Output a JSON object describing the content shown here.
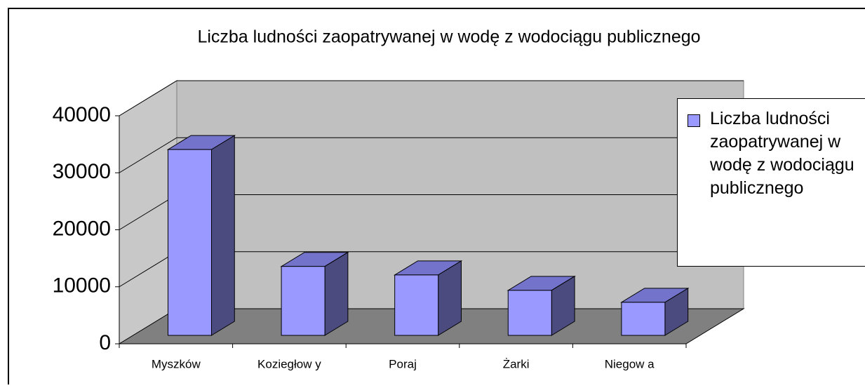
{
  "chart_data": {
    "type": "bar3d",
    "title": "Liczba ludności zaopatrywanej w wodę z wodociągu publicznego",
    "categories": [
      "Myszków",
      "Koziegłow y",
      "Poraj",
      "Żarki",
      "Niegow a"
    ],
    "series": [
      {
        "name": "Liczba ludności zaopatrywanej w wodę z wodociągu publicznego",
        "color": "#9999ff",
        "values": [
          32600,
          12100,
          10600,
          7900,
          5800
        ]
      }
    ],
    "ylim": [
      0,
      40000
    ],
    "yticks": [
      0,
      10000,
      20000,
      30000,
      40000
    ],
    "grid": true,
    "legend": "right"
  }
}
